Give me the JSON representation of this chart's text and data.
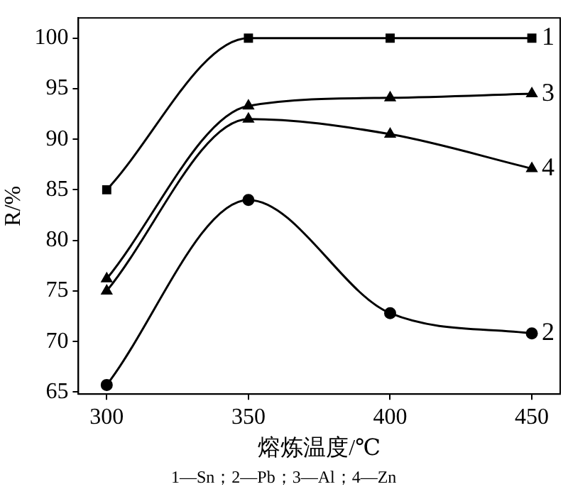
{
  "chart_data": {
    "type": "line",
    "xlabel": "熔炼温度/℃",
    "ylabel": "R/%",
    "x": [
      300,
      350,
      400,
      450
    ],
    "series": [
      {
        "name": "1",
        "color": "#000000",
        "marker": "square",
        "values": [
          85,
          100,
          100,
          100
        ]
      },
      {
        "name": "2",
        "color": "#000000",
        "marker": "circle",
        "values": [
          65.7,
          84,
          72.8,
          70.8
        ]
      },
      {
        "name": "3",
        "color": "#000000",
        "marker": "triangle",
        "values": [
          76.2,
          93.3,
          94.1,
          94.5
        ]
      },
      {
        "name": "4",
        "color": "#000000",
        "marker": "triangle",
        "values": [
          75,
          92,
          90.5,
          87.1
        ]
      }
    ],
    "xlim": [
      290,
      460
    ],
    "xticks": [
      300,
      350,
      400,
      450
    ],
    "ylim": [
      64.8,
      102
    ],
    "yticks": [
      65,
      70,
      75,
      80,
      85,
      90,
      95,
      100
    ],
    "grid": false,
    "legend": false,
    "line_style": "solid",
    "annotations": [
      "1—Sn；2—Pb；3—Al；4—Zn"
    ]
  }
}
